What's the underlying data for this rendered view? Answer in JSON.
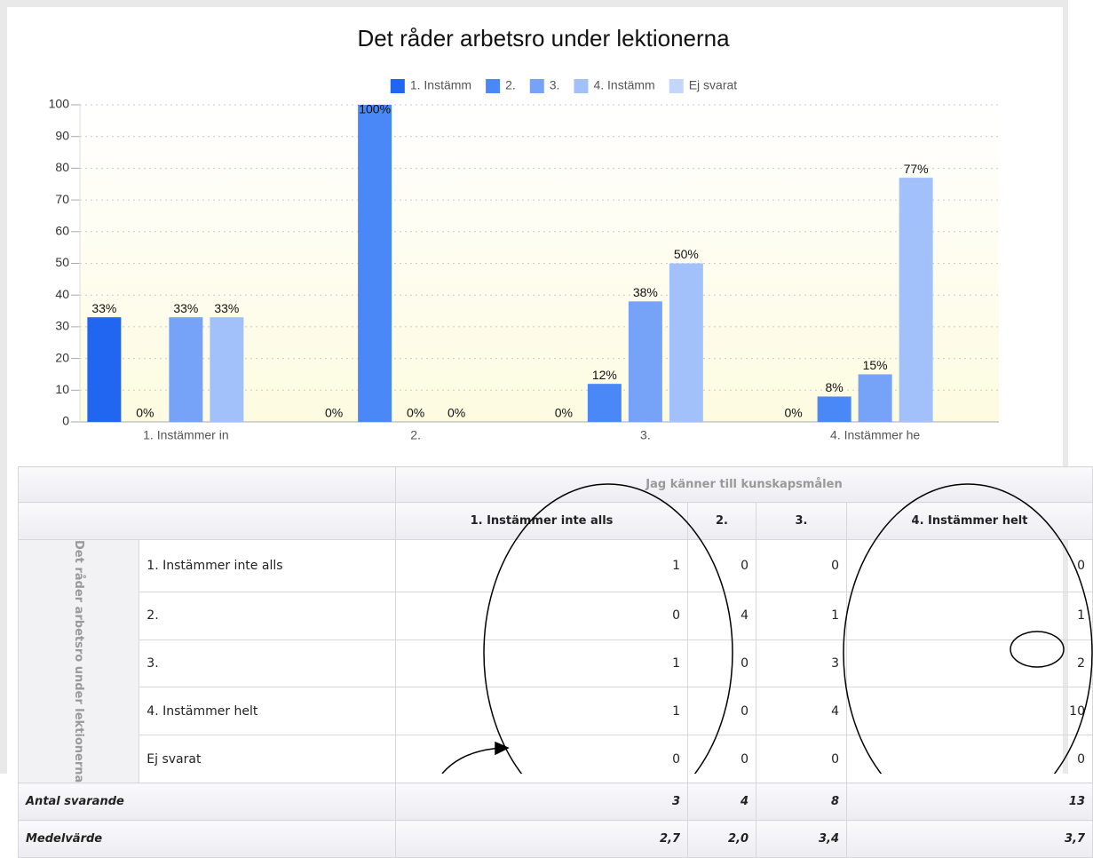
{
  "chart_data": {
    "type": "bar",
    "title": "Det råder arbetsro under lektionerna",
    "categories": [
      "1. Instämmer in",
      "2.",
      "3.",
      "4. Instämmer he"
    ],
    "series": [
      {
        "name": "1. Instämm",
        "color": "#2166f0",
        "values": [
          33,
          0,
          0,
          0
        ],
        "value_labels": [
          "33%",
          "0%",
          "0%",
          "0%"
        ]
      },
      {
        "name": "2.",
        "color": "#4a88f7",
        "values": [
          0,
          100,
          12,
          8
        ],
        "value_labels": [
          "0%",
          "100%",
          "12%",
          "8%"
        ]
      },
      {
        "name": "3.",
        "color": "#76a3f8",
        "values": [
          33,
          0,
          38,
          15
        ],
        "value_labels": [
          "33%",
          "0%",
          "38%",
          "15%"
        ]
      },
      {
        "name": "4. Instämm",
        "color": "#a2c1fa",
        "values": [
          33,
          0,
          50,
          77
        ],
        "value_labels": [
          "33%",
          "0%",
          "50%",
          "77%"
        ]
      },
      {
        "name": "Ej svarat",
        "color": "#c3d7fb",
        "values": [
          null,
          null,
          null,
          null
        ]
      }
    ],
    "ylim": [
      0,
      100
    ],
    "yticks": [
      0,
      10,
      20,
      30,
      40,
      50,
      60,
      70,
      80,
      90,
      100
    ],
    "grid": true
  },
  "table": {
    "group_header": "Jag känner till kunskapsmålen",
    "row_group": "Det råder arbetsro under lektionerna",
    "columns": [
      "1. Instämmer inte alls",
      "2.",
      "3.",
      "4. Instämmer helt"
    ],
    "rows": [
      {
        "label": "1. Instämmer inte alls",
        "values": [
          1,
          0,
          0,
          0
        ]
      },
      {
        "label": "2.",
        "values": [
          0,
          4,
          1,
          1
        ]
      },
      {
        "label": "3.",
        "values": [
          1,
          0,
          3,
          2
        ]
      },
      {
        "label": "4. Instämmer helt",
        "values": [
          1,
          0,
          4,
          10
        ]
      },
      {
        "label": "Ej svarat",
        "values": [
          0,
          0,
          0,
          0
        ]
      }
    ],
    "totals": {
      "label": "Antal svarande",
      "values": [
        3,
        4,
        8,
        13
      ]
    },
    "means": {
      "label": "Medelvärde",
      "values": [
        "2,7",
        "2,0",
        "3,4",
        "3,7"
      ]
    }
  }
}
